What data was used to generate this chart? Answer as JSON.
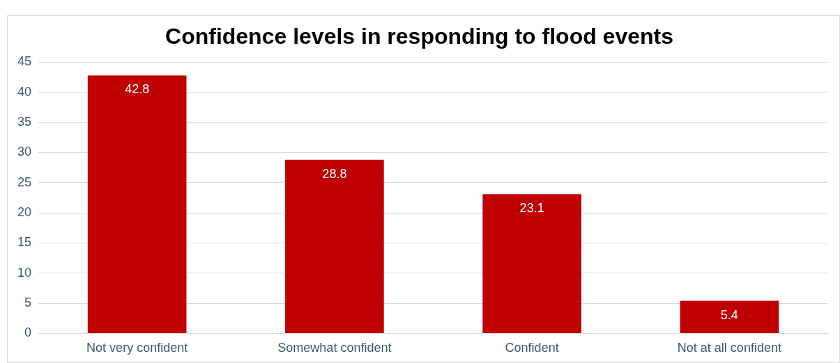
{
  "chart_data": {
    "type": "bar",
    "title": "Confidence levels in responding to flood events",
    "categories": [
      "Not very confident",
      "Somewhat confident",
      "Confident",
      "Not at all confident"
    ],
    "values": [
      42.8,
      28.8,
      23.1,
      5.4
    ],
    "color": "#c00000",
    "ylim": [
      0,
      45
    ],
    "yticks": [
      0,
      5,
      10,
      15,
      20,
      25,
      30,
      35,
      40,
      45
    ],
    "grid": "y",
    "data_labels": true,
    "legend": false
  }
}
